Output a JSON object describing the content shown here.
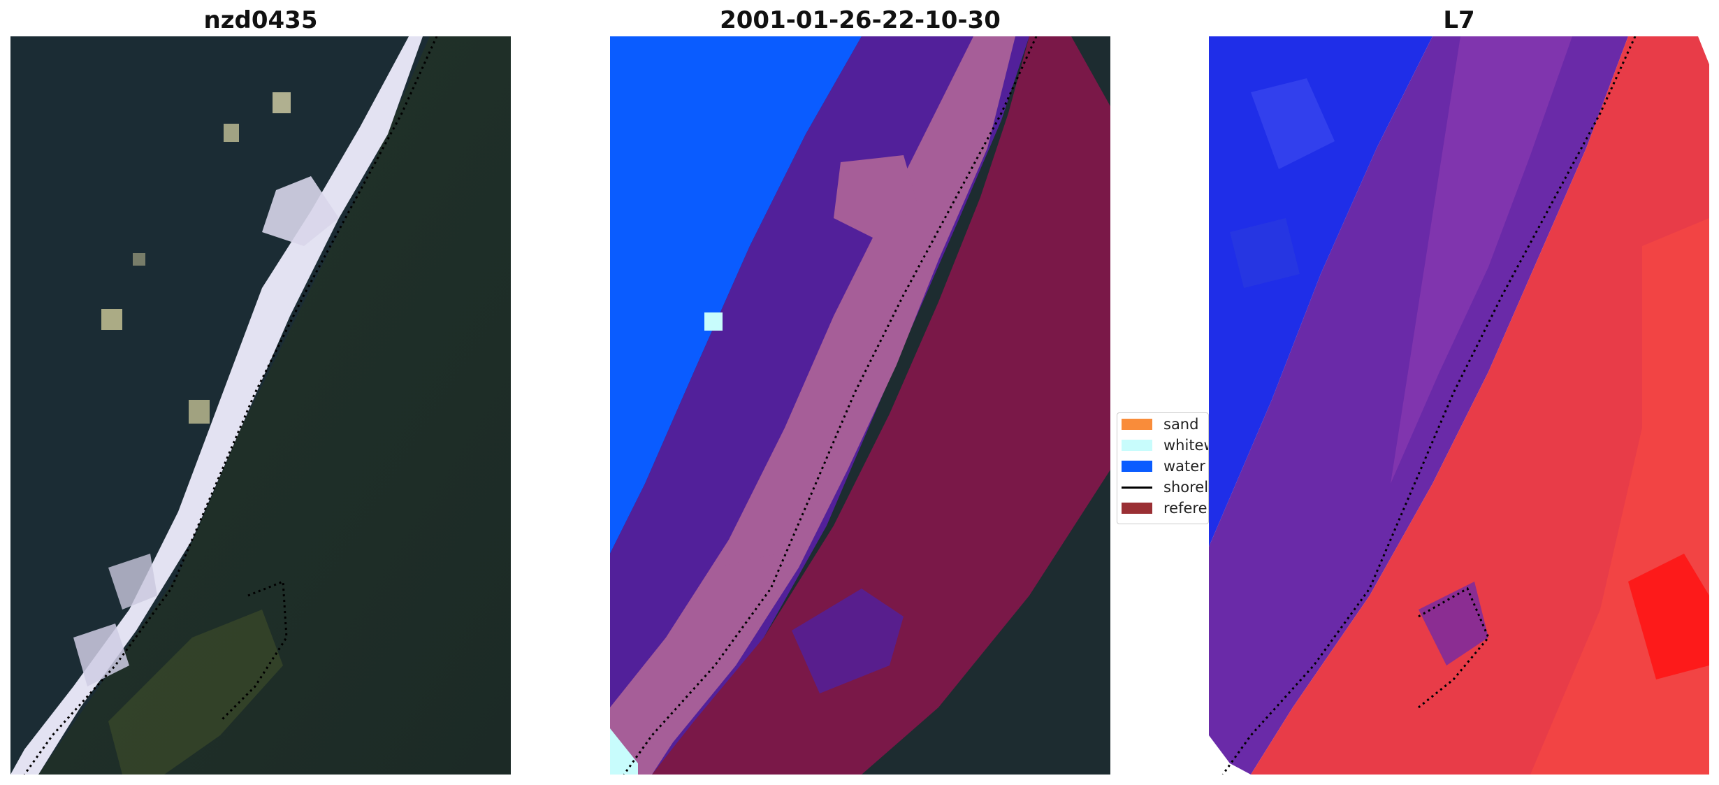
{
  "panels": [
    {
      "title": "nzd0435"
    },
    {
      "title": "2001-01-26-22-10-30"
    },
    {
      "title": "L7"
    }
  ],
  "legend": {
    "items": [
      {
        "label": "sand",
        "color": "#f98c3a",
        "kind": "patch"
      },
      {
        "label": "whitewater",
        "color": "#c8fcfc",
        "kind": "patch"
      },
      {
        "label": "water",
        "color": "#0a5cff",
        "kind": "patch"
      },
      {
        "label": "shoreline",
        "color": "#000000",
        "kind": "line"
      },
      {
        "label": "reference",
        "color": "#9a2f34",
        "kind": "patch"
      }
    ]
  },
  "colors": {
    "water_dark": "#1a2a34",
    "land_dark": "#1f3026",
    "surf_white": "#e8e8f5",
    "sand_class_mauve": "#a85e9a",
    "water_class_blue": "#0a5cff",
    "ocean_class_purple": "#52209a",
    "reference_overlay": "#7a1848",
    "index_blue": "#1f2ee8",
    "index_red": "#f23a3a",
    "index_purple": "#6a2aa8"
  }
}
